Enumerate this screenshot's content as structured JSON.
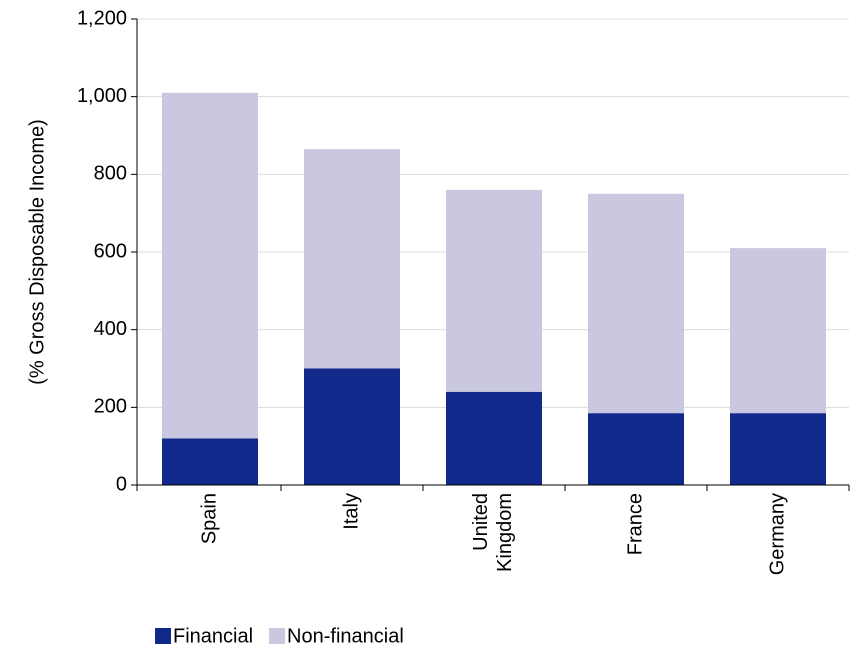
{
  "chart_data": {
    "type": "stacked-bar",
    "y_label": "(% Gross Disposable Income)",
    "categories": [
      "Spain",
      "Italy",
      "United Kingdom",
      "France",
      "Germany"
    ],
    "series": [
      {
        "name": "Financial",
        "color": "#10298a",
        "values": [
          120,
          300,
          240,
          185,
          185
        ]
      },
      {
        "name": "Non-financial",
        "color": "#c9c8e0",
        "values": [
          890,
          565,
          520,
          565,
          425
        ]
      }
    ],
    "ylim": [
      0,
      1200
    ],
    "yticks": [
      0,
      200,
      400,
      600,
      800,
      {
        "value": 1000,
        "label": "1,000"
      },
      {
        "value": 1200,
        "label": "1,200"
      }
    ],
    "grid": true
  }
}
